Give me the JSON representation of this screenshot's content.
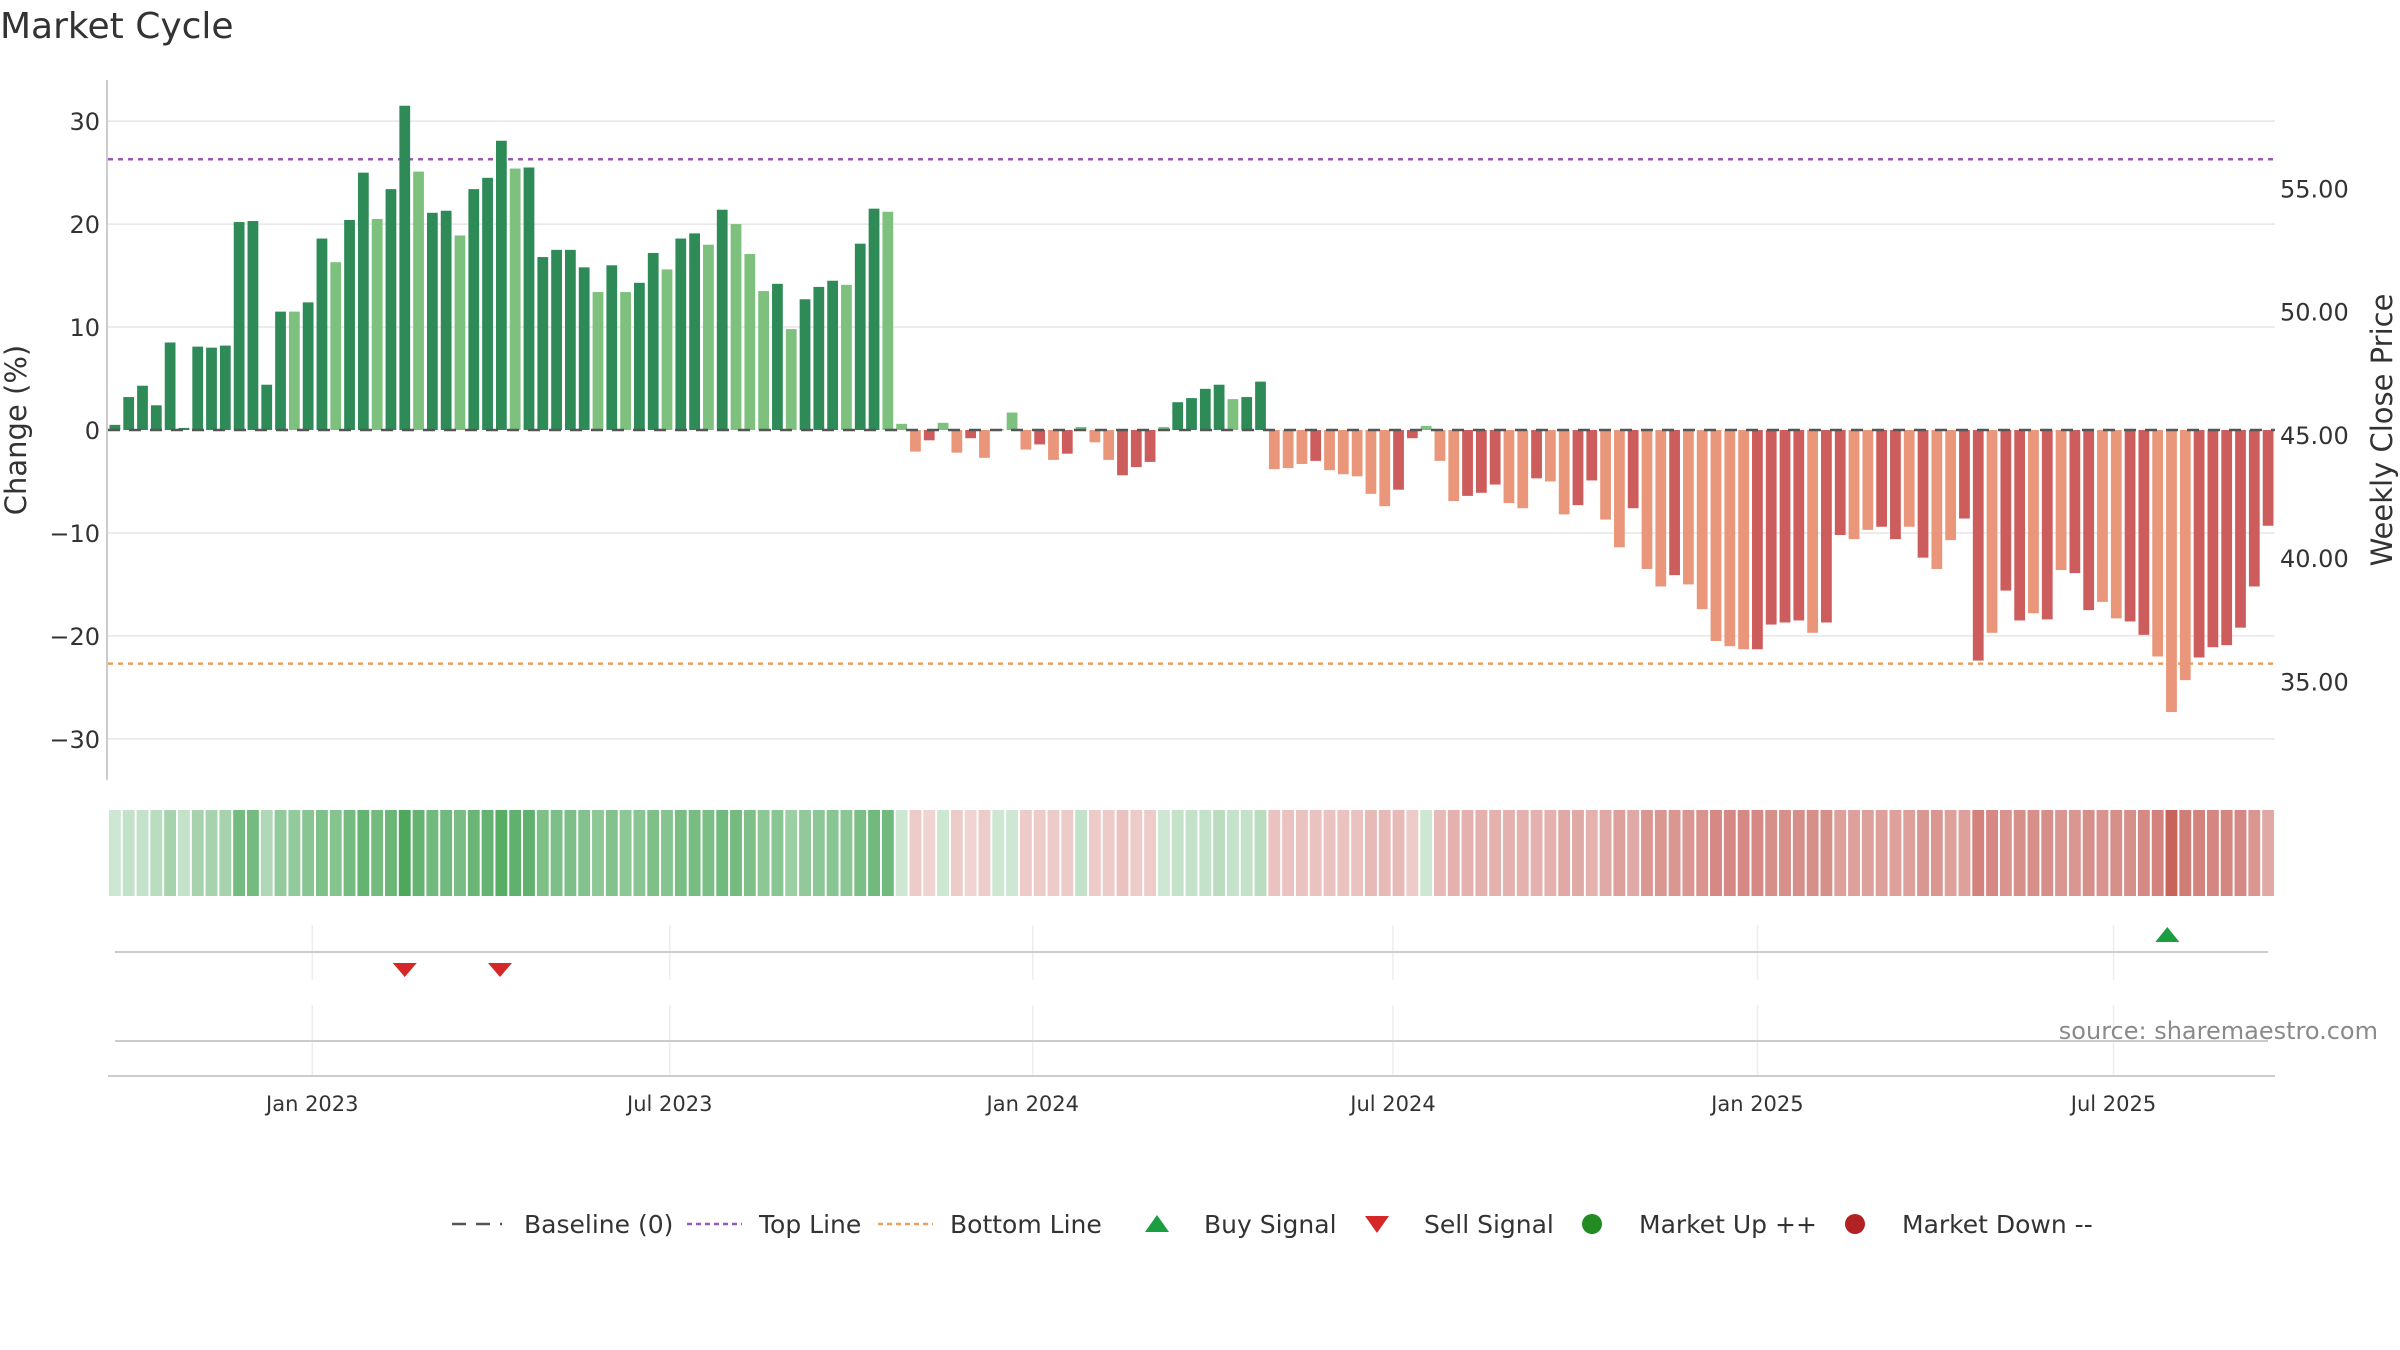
{
  "chart_data": {
    "type": "bar",
    "title": "Market Cycle",
    "ylabel": "Change (%)",
    "y2label": "Weekly Close Price",
    "ylim": [
      -34,
      34
    ],
    "y2lim": [
      31.0,
      59.4
    ],
    "yticks": [
      "30",
      "20",
      "10",
      "0",
      "−10",
      "−20",
      "−30"
    ],
    "ytick_values": [
      30,
      20,
      10,
      0,
      -10,
      -20,
      -30
    ],
    "y2ticks": [
      "55.00",
      "50.00",
      "45.00",
      "40.00",
      "35.00"
    ],
    "y2tick_values": [
      55,
      50,
      45,
      40,
      35
    ],
    "date_ticks": [
      "Jan 2023",
      "Jul 2023",
      "Jan 2024",
      "Jul 2024",
      "Jan 2025",
      "Jul 2025"
    ],
    "date_tick_weeks": [
      14.8,
      40.7,
      67.0,
      93.1,
      119.5,
      145.3
    ],
    "top_line": 26.3,
    "bottom_line": -22.7,
    "values": [
      0.5,
      3.2,
      4.3,
      2.4,
      8.5,
      0.2,
      8.1,
      8.0,
      8.2,
      20.2,
      20.3,
      4.4,
      11.5,
      11.5,
      12.4,
      18.6,
      16.3,
      20.4,
      25.0,
      20.5,
      23.4,
      31.5,
      25.1,
      21.1,
      21.3,
      18.9,
      23.4,
      24.5,
      28.1,
      25.4,
      25.5,
      16.8,
      17.5,
      17.5,
      15.8,
      13.4,
      16.0,
      13.4,
      14.3,
      17.2,
      15.6,
      18.6,
      19.1,
      18.0,
      21.4,
      20.0,
      17.1,
      13.5,
      14.2,
      9.8,
      12.7,
      13.9,
      14.5,
      14.1,
      18.1,
      21.5,
      21.2,
      0.6,
      -2.1,
      -1.0,
      0.7,
      -2.2,
      -0.8,
      -2.7,
      0.1,
      1.7,
      -1.9,
      -1.4,
      -2.9,
      -2.3,
      0.3,
      -1.2,
      -2.9,
      -4.4,
      -3.6,
      -3.1,
      0.3,
      2.7,
      3.1,
      4.0,
      4.4,
      3.0,
      3.2,
      4.7,
      -3.8,
      -3.7,
      -3.3,
      -3.0,
      -3.9,
      -4.3,
      -4.5,
      -6.2,
      -7.4,
      -5.8,
      -0.8,
      0.4,
      -3.0,
      -6.9,
      -6.4,
      -6.1,
      -5.3,
      -7.1,
      -7.6,
      -4.7,
      -5.0,
      -8.2,
      -7.3,
      -4.9,
      -8.7,
      -11.4,
      -7.6,
      -13.5,
      -15.2,
      -14.1,
      -15.0,
      -17.4,
      -20.5,
      -21.0,
      -21.3,
      -21.3,
      -18.9,
      -18.7,
      -18.5,
      -19.7,
      -18.7,
      -10.2,
      -10.6,
      -9.7,
      -9.4,
      -10.6,
      -9.4,
      -12.4,
      -13.5,
      -10.7,
      -8.6,
      -22.4,
      -19.7,
      -15.6,
      -18.5,
      -17.8,
      -18.4,
      -13.6,
      -13.9,
      -17.5,
      -16.7,
      -18.3,
      -18.6,
      -19.9,
      -22.0,
      -27.4,
      -24.3,
      -22.1,
      -21.1,
      -20.9,
      -19.2,
      -15.2,
      -9.3
    ],
    "category_codes": [
      2,
      2,
      2,
      2,
      2,
      2,
      2,
      2,
      2,
      2,
      2,
      2,
      2,
      1,
      2,
      2,
      1,
      2,
      2,
      1,
      2,
      2,
      1,
      2,
      2,
      1,
      2,
      2,
      2,
      1,
      2,
      2,
      2,
      2,
      2,
      1,
      2,
      1,
      2,
      2,
      1,
      2,
      2,
      1,
      2,
      1,
      1,
      1,
      2,
      1,
      2,
      2,
      2,
      1,
      2,
      2,
      1,
      1,
      3,
      4,
      1,
      3,
      4,
      3,
      1,
      1,
      3,
      4,
      3,
      4,
      1,
      3,
      3,
      4,
      4,
      4,
      1,
      2,
      2,
      2,
      2,
      1,
      2,
      2,
      3,
      3,
      3,
      4,
      3,
      3,
      3,
      3,
      3,
      4,
      4,
      1,
      3,
      3,
      4,
      4,
      4,
      3,
      3,
      4,
      3,
      3,
      4,
      4,
      3,
      3,
      4,
      3,
      3,
      4,
      3,
      3,
      3,
      3,
      3,
      4,
      4,
      4,
      4,
      3,
      4,
      4,
      3,
      3,
      4,
      4,
      3,
      4,
      3,
      3,
      4,
      4,
      3,
      4,
      4,
      3,
      4,
      3,
      4,
      4,
      3,
      3,
      4,
      4,
      3,
      3,
      3,
      4,
      4,
      4,
      4,
      4,
      4,
      4
    ],
    "strip_shades": [
      0.25,
      0.3,
      0.3,
      0.35,
      0.45,
      0.3,
      0.45,
      0.45,
      0.45,
      0.7,
      0.7,
      0.4,
      0.55,
      0.55,
      0.6,
      0.65,
      0.62,
      0.7,
      0.78,
      0.7,
      0.75,
      0.9,
      0.78,
      0.72,
      0.72,
      0.68,
      0.75,
      0.78,
      0.85,
      0.8,
      0.8,
      0.65,
      0.66,
      0.66,
      0.63,
      0.58,
      0.63,
      0.58,
      0.6,
      0.65,
      0.62,
      0.68,
      0.69,
      0.67,
      0.72,
      0.7,
      0.65,
      0.58,
      0.6,
      0.5,
      0.56,
      0.58,
      0.6,
      0.59,
      0.67,
      0.72,
      0.72,
      0.25,
      0.3,
      0.25,
      0.25,
      0.3,
      0.25,
      0.3,
      0.25,
      0.25,
      0.3,
      0.3,
      0.3,
      0.3,
      0.3,
      0.3,
      0.3,
      0.35,
      0.3,
      0.3,
      0.25,
      0.3,
      0.3,
      0.3,
      0.35,
      0.3,
      0.3,
      0.35,
      0.35,
      0.35,
      0.35,
      0.35,
      0.35,
      0.35,
      0.35,
      0.4,
      0.4,
      0.4,
      0.3,
      0.25,
      0.4,
      0.45,
      0.45,
      0.45,
      0.45,
      0.45,
      0.45,
      0.45,
      0.45,
      0.5,
      0.5,
      0.45,
      0.5,
      0.55,
      0.5,
      0.6,
      0.6,
      0.6,
      0.6,
      0.62,
      0.68,
      0.68,
      0.68,
      0.68,
      0.65,
      0.65,
      0.65,
      0.65,
      0.65,
      0.55,
      0.55,
      0.55,
      0.55,
      0.55,
      0.55,
      0.6,
      0.6,
      0.55,
      0.55,
      0.72,
      0.68,
      0.62,
      0.65,
      0.65,
      0.65,
      0.6,
      0.6,
      0.65,
      0.62,
      0.65,
      0.65,
      0.68,
      0.72,
      0.9,
      0.75,
      0.72,
      0.7,
      0.7,
      0.68,
      0.6,
      0.5
    ],
    "signals": [
      {
        "type": "sell",
        "week": 21.5
      },
      {
        "type": "sell",
        "week": 28.4
      },
      {
        "type": "buy",
        "week": 149.2
      }
    ],
    "colors": {
      "strong_up": "#2e8b57",
      "up": "#7ec07e",
      "strong_down": "#cd5c5c",
      "down": "#e9967a",
      "top_line": "#9b59b6",
      "bottom_line": "#e8a060",
      "baseline": "#555555",
      "buy": "#1a9e3f",
      "sell": "#d62728",
      "market_up": "#228b22",
      "market_down": "#b22222",
      "strip_up": "#3a9e4a",
      "strip_down": "#c2524a"
    },
    "legend": [
      {
        "label": "Baseline (0)",
        "marker": "dash-long"
      },
      {
        "label": "Top Line",
        "marker": "dot-purple"
      },
      {
        "label": "Bottom Line",
        "marker": "dot-orange"
      },
      {
        "label": "Buy Signal",
        "marker": "triangle-up"
      },
      {
        "label": "Sell Signal",
        "marker": "triangle-down"
      },
      {
        "label": "Market Up ++",
        "marker": "circle-green"
      },
      {
        "label": "Market Down --",
        "marker": "circle-red"
      }
    ],
    "legend_position": "bottom-center",
    "source": "source: sharemaestro.com"
  }
}
